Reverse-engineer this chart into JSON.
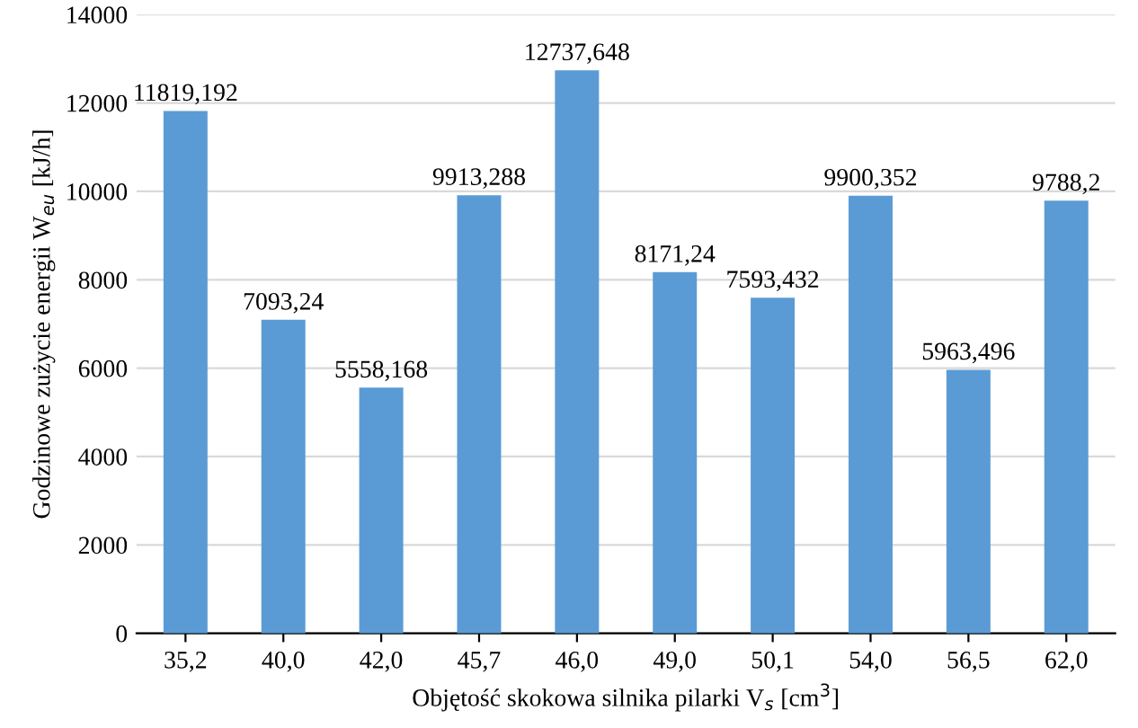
{
  "chart_data": {
    "type": "bar",
    "xlabel": "Objętość skokowa silnika pilarki V$_{s}$ [cm$^{3}$]",
    "ylabel": "Godzinowe zużycie energii W$_{eu}$ [kJ/h]",
    "categories": [
      "35,2",
      "40,0",
      "42,0",
      "45,7",
      "46,0",
      "49,0",
      "50,1",
      "54,0",
      "56,5",
      "62,0"
    ],
    "values": [
      11819.192,
      7093.24,
      5558.168,
      9913.288,
      12737.648,
      8171.24,
      7593.432,
      9900.352,
      5963.496,
      9788.2
    ],
    "value_labels": [
      "11819,192",
      "7093,24",
      "5558,168",
      "9913,288",
      "12737,648",
      "8171,24",
      "7593,432",
      "9900,352",
      "5963,496",
      "9788,2"
    ],
    "color": "#5b9bd5",
    "ylim": [
      0,
      14000
    ],
    "yticks": [
      0,
      2000,
      4000,
      6000,
      8000,
      10000,
      12000,
      14000
    ],
    "grid": "y"
  }
}
